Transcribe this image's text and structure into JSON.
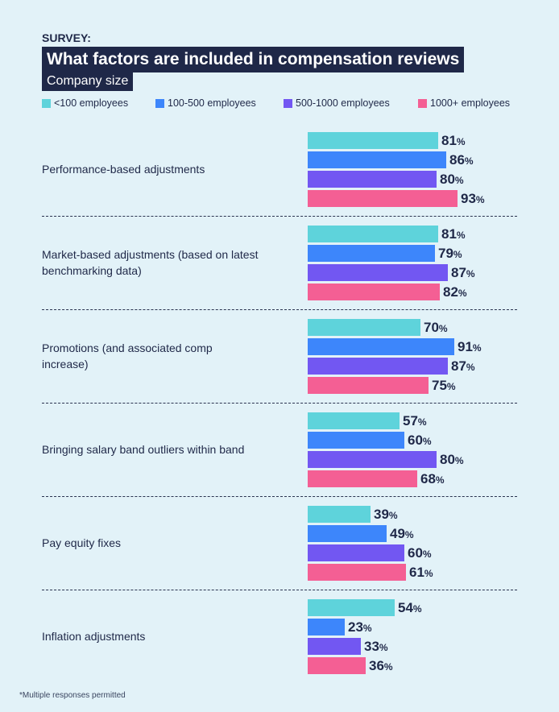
{
  "chart_data": {
    "type": "bar",
    "orientation": "horizontal",
    "kicker": "SURVEY:",
    "title": "What factors are included in compensation reviews",
    "subtitle": "Company size",
    "categories": [
      "Performance-based adjustments",
      "Market-based adjustments (based on latest benchmarking data)",
      "Promotions (and associated comp increase)",
      "Bringing salary band outliers within band",
      "Pay equity fixes",
      "Inflation adjustments"
    ],
    "series": [
      {
        "name": "<100 employees",
        "color": "#5ed3db",
        "values": [
          81,
          81,
          70,
          57,
          39,
          54
        ]
      },
      {
        "name": "100-500 employees",
        "color": "#3d86fb",
        "values": [
          86,
          79,
          91,
          60,
          49,
          23
        ]
      },
      {
        "name": "500-1000 employees",
        "color": "#7257f2",
        "values": [
          80,
          87,
          87,
          80,
          60,
          33
        ]
      },
      {
        "name": "1000+ employees",
        "color": "#f45f94",
        "values": [
          93,
          82,
          75,
          68,
          61,
          36
        ]
      }
    ],
    "unit": "%",
    "legend_position": "top",
    "grid": false,
    "footnote": "*Multiple responses permitted"
  }
}
